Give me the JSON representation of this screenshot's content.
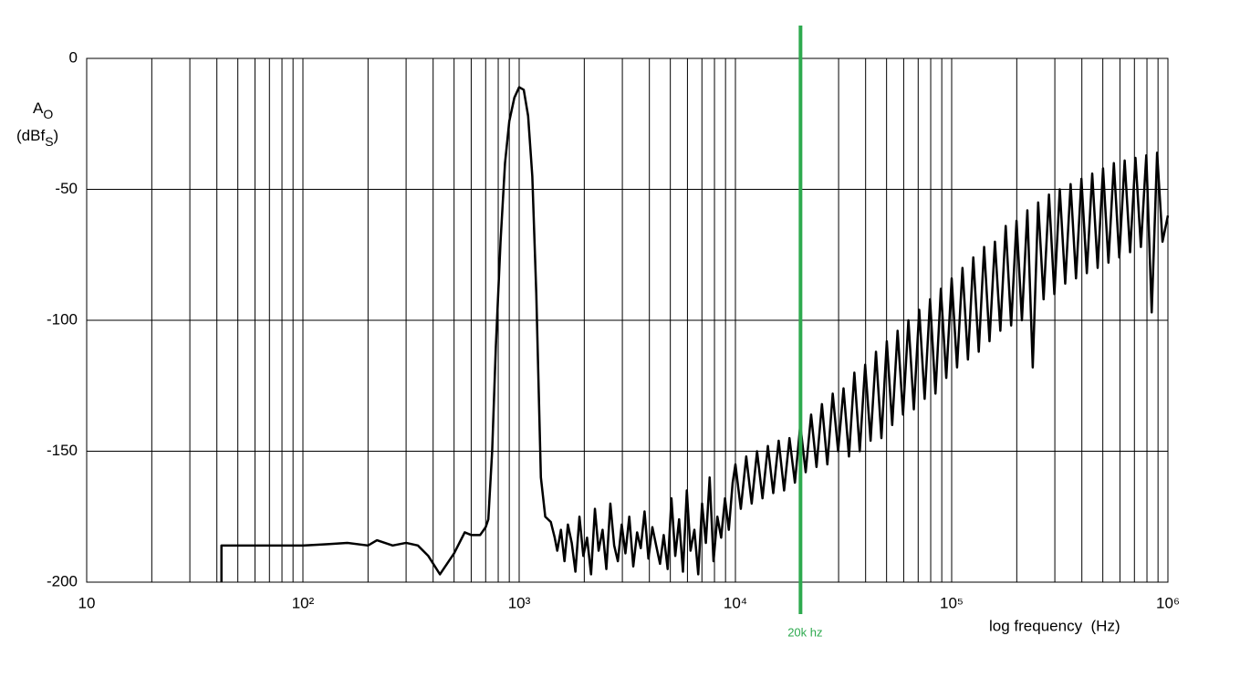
{
  "chart_data": {
    "type": "line",
    "color": "#000000",
    "xscale": "log",
    "xlim": [
      10,
      1000000
    ],
    "ylim": [
      -200,
      0
    ],
    "xticks": [
      10,
      {
        "value": 100,
        "label": "10²"
      },
      {
        "value": 1000,
        "label": "10³"
      },
      {
        "value": 10000,
        "label": "10⁴"
      },
      {
        "value": 100000,
        "label": "10⁵"
      },
      {
        "value": 1000000,
        "label": "10⁶"
      }
    ],
    "xminorticks": [
      20,
      30,
      40,
      50,
      60,
      70,
      80,
      90,
      200,
      300,
      400,
      500,
      600,
      700,
      800,
      900,
      2000,
      3000,
      4000,
      5000,
      6000,
      7000,
      8000,
      9000,
      20000,
      30000,
      40000,
      50000,
      60000,
      70000,
      80000,
      90000,
      200000,
      300000,
      400000,
      500000,
      600000,
      700000,
      800000,
      900000
    ],
    "yticks": [
      -200,
      -150,
      -100,
      -50,
      0
    ],
    "grid": true,
    "y_label": {
      "symbol": "A",
      "symbol_sub": "O",
      "unit": "(dBf",
      "unit_sub": "S",
      "unit_end": ")"
    },
    "x_label": "log frequency  (Hz)",
    "annotations": [
      {
        "x": 20000,
        "label": "20k hz",
        "color": "#2eaa4f"
      }
    ],
    "x": [
      42,
      42,
      50,
      100,
      130,
      160,
      200,
      220,
      260,
      300,
      340,
      380,
      430,
      500,
      560,
      600,
      660,
      700,
      720,
      750,
      780,
      820,
      860,
      900,
      950,
      1000,
      1050,
      1100,
      1150,
      1200,
      1260,
      1320,
      1400,
      1460,
      1500,
      1560,
      1620,
      1680,
      1750,
      1820,
      1900,
      1980,
      2060,
      2150,
      2240,
      2330,
      2430,
      2530,
      2640,
      2750,
      2860,
      2980,
      3100,
      3230,
      3370,
      3510,
      3650,
      3800,
      3960,
      4130,
      4300,
      4480,
      4660,
      4860,
      5060,
      5270,
      5490,
      5720,
      5960,
      6200,
      6460,
      6730,
      7010,
      7300,
      7600,
      7920,
      8250,
      8590,
      8950,
      9320,
      9710,
      10000,
      10590,
      11220,
      11890,
      12590,
      13340,
      14130,
      14960,
      15850,
      16790,
      17780,
      18840,
      19950,
      21130,
      22390,
      23710,
      25120,
      26610,
      28180,
      29850,
      31620,
      33500,
      35480,
      37580,
      39810,
      42170,
      44670,
      47320,
      50120,
      53090,
      56230,
      59570,
      63100,
      66830,
      70790,
      74990,
      79430,
      84140,
      89130,
      94410,
      100000,
      105900,
      112200,
      118900,
      125900,
      133400,
      141300,
      149600,
      158500,
      167900,
      177800,
      188400,
      199500,
      211300,
      223900,
      237100,
      251200,
      266100,
      281800,
      298500,
      316200,
      335000,
      354800,
      375800,
      398100,
      421700,
      446700,
      473200,
      501200,
      530900,
      562300,
      595700,
      631000,
      668300,
      707900,
      749900,
      794300,
      841400,
      891300,
      944100,
      1000000
    ],
    "values": [
      -200,
      -186,
      -186,
      -186,
      -185.5,
      -185,
      -186,
      -184,
      -186,
      -185,
      -186,
      -190,
      -197,
      -189,
      -181,
      -182,
      -182,
      -179,
      -176,
      -150,
      -110,
      -70,
      -40,
      -24,
      -15,
      -11,
      -12,
      -22,
      -45,
      -90,
      -160,
      -175,
      -177,
      -183,
      -188,
      -180,
      -192,
      -178,
      -185,
      -196,
      -175,
      -190,
      -183,
      -197,
      -172,
      -188,
      -180,
      -195,
      -170,
      -186,
      -192,
      -178,
      -189,
      -175,
      -194,
      -181,
      -187,
      -173,
      -191,
      -179,
      -186,
      -193,
      -182,
      -195,
      -168,
      -190,
      -176,
      -196,
      -165,
      -188,
      -180,
      -197,
      -170,
      -185,
      -160,
      -192,
      -175,
      -183,
      -168,
      -180,
      -162,
      -155,
      -172,
      -152,
      -170,
      -150,
      -168,
      -148,
      -166,
      -146,
      -165,
      -145,
      -162,
      -140,
      -158,
      -136,
      -156,
      -132,
      -155,
      -128,
      -150,
      -126,
      -152,
      -120,
      -150,
      -117,
      -146,
      -112,
      -145,
      -108,
      -140,
      -104,
      -136,
      -100,
      -134,
      -96,
      -130,
      -92,
      -128,
      -88,
      -122,
      -84,
      -118,
      -80,
      -115,
      -76,
      -112,
      -72,
      -108,
      -70,
      -104,
      -64,
      -102,
      -62,
      -100,
      -58,
      -118,
      -55,
      -92,
      -52,
      -90,
      -50,
      -86,
      -48,
      -84,
      -46,
      -82,
      -44,
      -80,
      -42,
      -78,
      -40,
      -76,
      -39,
      -74,
      -38,
      -72,
      -37,
      -97,
      -36,
      -70,
      -60
    ]
  }
}
